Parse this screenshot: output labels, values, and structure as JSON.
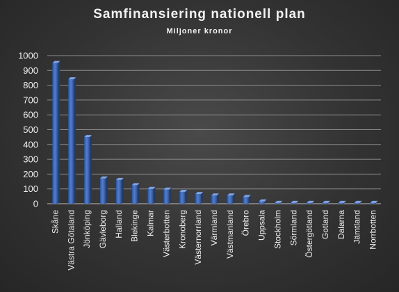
{
  "chart_data": {
    "type": "bar",
    "title": "Samfinansiering  nationell  plan",
    "subtitle": "Miljoner  kronor",
    "categories": [
      "Skåne",
      "Västra Götaland",
      "Jönköping",
      "Gävleborg",
      "Halland",
      "Blekinge",
      "Kalmar",
      "Västerbotten",
      "Kronoberg",
      "Västernorrland",
      "Värmland",
      "Västmanland",
      "Örebro",
      "Uppsala",
      "Stockholm",
      "Sörmland",
      "Östergötland",
      "Gotland",
      "Dalarna",
      "Jämtland",
      "Norrbotten"
    ],
    "values": [
      950,
      840,
      450,
      170,
      160,
      125,
      100,
      95,
      80,
      65,
      55,
      55,
      45,
      15,
      5,
      5,
      5,
      5,
      5,
      5,
      5
    ],
    "ylim": [
      0,
      1000
    ],
    "yticks": [
      0,
      100,
      200,
      300,
      400,
      500,
      600,
      700,
      800,
      900,
      1000
    ],
    "grid": true,
    "bar_color": "#4472c4"
  }
}
